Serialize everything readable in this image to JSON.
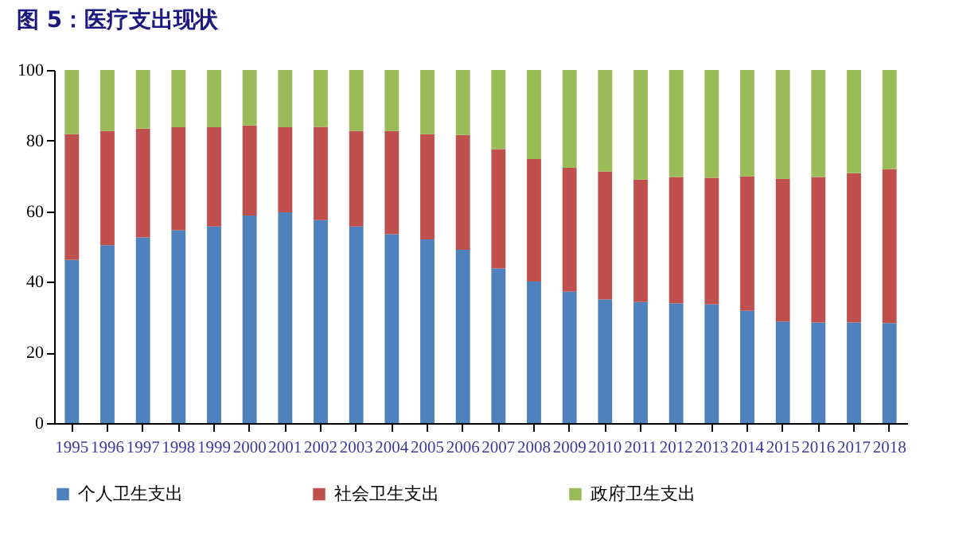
{
  "chart_data": {
    "type": "bar",
    "title": "图 5：医疗支出现状",
    "stacked": true,
    "categories": [
      "1995",
      "1996",
      "1997",
      "1998",
      "1999",
      "2000",
      "2001",
      "2002",
      "2003",
      "2004",
      "2005",
      "2006",
      "2007",
      "2008",
      "2009",
      "2010",
      "2011",
      "2012",
      "2013",
      "2014",
      "2015",
      "2016",
      "2017",
      "2018"
    ],
    "series": [
      {
        "name": "个人卫生支出",
        "color": "#4f81bd",
        "values": [
          46.2,
          50.4,
          52.6,
          54.6,
          55.7,
          58.8,
          59.7,
          57.5,
          55.7,
          53.5,
          52.0,
          49.1,
          43.8,
          40.1,
          37.2,
          35.0,
          34.3,
          33.9,
          33.6,
          31.8,
          28.8,
          28.5,
          28.5,
          28.3
        ]
      },
      {
        "name": "社会卫生支出",
        "color": "#c0504d",
        "values": [
          35.6,
          32.3,
          30.8,
          29.2,
          28.1,
          25.5,
          24.1,
          26.4,
          27.0,
          29.2,
          29.8,
          32.5,
          33.8,
          34.7,
          35.1,
          36.2,
          34.7,
          35.8,
          35.9,
          38.1,
          40.4,
          41.2,
          42.3,
          43.6
        ]
      },
      {
        "name": "政府卫生支出",
        "color": "#9bbb59",
        "values": [
          18.2,
          17.3,
          16.6,
          16.2,
          16.2,
          15.7,
          16.2,
          16.1,
          17.3,
          17.3,
          18.2,
          18.4,
          22.4,
          25.2,
          27.7,
          28.8,
          31.0,
          30.3,
          30.5,
          30.1,
          30.8,
          30.3,
          29.2,
          28.1
        ]
      }
    ],
    "ylim": [
      0,
      100
    ],
    "yticks": [
      0,
      20,
      40,
      60,
      80,
      100
    ],
    "grid": false,
    "legend": "bottom"
  }
}
